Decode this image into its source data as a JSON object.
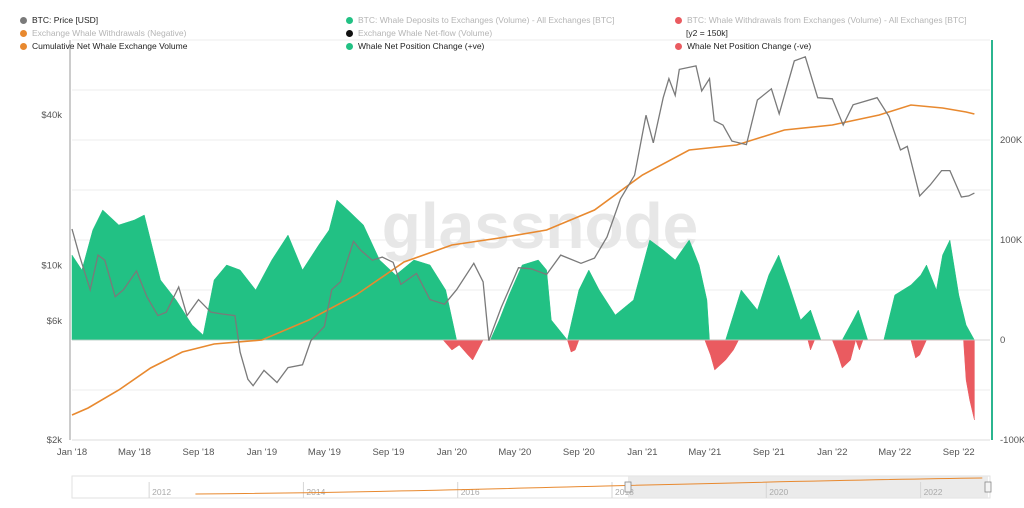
{
  "colors": {
    "price": "#7a7a7a",
    "cumulative": "#e8892f",
    "positive": "#22c184",
    "negative": "#ea5b60",
    "deposits": "#22c184",
    "withdrawals": "#ea5b60",
    "netflow": "#111111",
    "negWithdrawals": "#e8892f",
    "axis_right": "#2bb58f",
    "grid": "#ededed"
  },
  "legend": {
    "items": [
      {
        "label": "BTC: Price [USD]",
        "color": "#7a7a7a",
        "dim": false
      },
      {
        "label": "BTC: Whale Deposits to Exchanges (Volume) - All Exchanges [BTC]",
        "color": "#22c184",
        "dim": true
      },
      {
        "label": "BTC: Whale Withdrawals from Exchanges (Volume) - All Exchanges [BTC]",
        "color": "#ea5b60",
        "dim": true
      },
      {
        "label": "Exchange Whale Withdrawals (Negative)",
        "color": "#e8892f",
        "dim": true
      },
      {
        "label": "Exchange Whale Net-flow (Volume)",
        "color": "#111111",
        "dim": true
      },
      {
        "label": "[y2 = 150k]",
        "color": "",
        "dim": false
      },
      {
        "label": "Cumulative Net Whale Exchange Volume",
        "color": "#e8892f",
        "dim": false
      },
      {
        "label": "Whale Net Position Change (+ve)",
        "color": "#22c184",
        "dim": false
      },
      {
        "label": "Whale Net Position Change (-ve)",
        "color": "#ea5b60",
        "dim": false
      }
    ]
  },
  "watermark": "glassnode",
  "chart_data": {
    "type": "area",
    "x_axis": {
      "ticks": [
        "Jan '18",
        "May '18",
        "Sep '18",
        "Jan '19",
        "May '19",
        "Sep '19",
        "Jan '20",
        "May '20",
        "Sep '20",
        "Jan '21",
        "May '21",
        "Sep '21",
        "Jan '22",
        "May '22",
        "Sep '22"
      ],
      "range": [
        "2018-01-01",
        "2022-10-31"
      ]
    },
    "y_left": {
      "scale": "log",
      "ticks": [
        "$2k",
        "$6k",
        "$10k",
        "$40k"
      ],
      "tick_values": [
        2000,
        6000,
        10000,
        40000
      ],
      "range": [
        2000,
        80000
      ]
    },
    "y_right": {
      "ticks": [
        "-100K",
        "0",
        "100K",
        "200K"
      ],
      "tick_values": [
        -100000,
        0,
        100000,
        200000
      ],
      "range": [
        -100000,
        300000
      ]
    },
    "series": [
      {
        "name": "BTC: Price [USD]",
        "axis": "left",
        "kind": "line",
        "x": [
          "2018-01-01",
          "2018-01-15",
          "2018-02-05",
          "2018-02-20",
          "2018-03-05",
          "2018-03-25",
          "2018-04-10",
          "2018-05-05",
          "2018-05-25",
          "2018-06-15",
          "2018-07-01",
          "2018-07-25",
          "2018-08-10",
          "2018-09-01",
          "2018-09-25",
          "2018-10-15",
          "2018-11-10",
          "2018-11-20",
          "2018-12-05",
          "2018-12-15",
          "2019-01-05",
          "2019-01-30",
          "2019-02-20",
          "2019-03-20",
          "2019-04-05",
          "2019-05-01",
          "2019-05-15",
          "2019-06-01",
          "2019-06-26",
          "2019-07-10",
          "2019-08-01",
          "2019-08-20",
          "2019-09-10",
          "2019-09-25",
          "2019-10-25",
          "2019-11-20",
          "2019-12-18",
          "2020-01-10",
          "2020-02-12",
          "2020-03-01",
          "2020-03-12",
          "2020-04-05",
          "2020-05-08",
          "2020-06-01",
          "2020-07-01",
          "2020-07-28",
          "2020-09-05",
          "2020-10-01",
          "2020-10-25",
          "2020-11-20",
          "2020-12-17",
          "2021-01-08",
          "2021-01-22",
          "2021-02-10",
          "2021-02-21",
          "2021-03-05",
          "2021-03-13",
          "2021-04-14",
          "2021-04-25",
          "2021-05-10",
          "2021-05-19",
          "2021-06-05",
          "2021-06-22",
          "2021-07-20",
          "2021-08-10",
          "2021-09-06",
          "2021-09-21",
          "2021-10-20",
          "2021-11-10",
          "2021-12-04",
          "2022-01-01",
          "2022-01-22",
          "2022-02-10",
          "2022-03-28",
          "2022-04-20",
          "2022-05-12",
          "2022-05-25",
          "2022-06-18",
          "2022-07-08",
          "2022-07-30",
          "2022-08-15",
          "2022-09-06",
          "2022-09-20",
          "2022-10-01"
        ],
        "y": [
          14000,
          11000,
          8000,
          11000,
          10500,
          7500,
          8000,
          9500,
          7500,
          6300,
          6500,
          8200,
          6300,
          7300,
          6500,
          6400,
          6300,
          4500,
          3500,
          3300,
          3800,
          3400,
          3900,
          4000,
          5000,
          5700,
          8000,
          8600,
          12500,
          11500,
          10500,
          10800,
          10300,
          8400,
          9300,
          7300,
          7000,
          8000,
          10200,
          8600,
          5000,
          6800,
          9800,
          9700,
          9200,
          11000,
          10200,
          10700,
          13000,
          18500,
          23000,
          40000,
          31000,
          47000,
          56000,
          48000,
          61000,
          63000,
          50000,
          56000,
          38000,
          36500,
          31500,
          30500,
          46000,
          51000,
          40500,
          66000,
          68500,
          47000,
          46500,
          36500,
          44000,
          47000,
          39500,
          29000,
          30000,
          19000,
          21000,
          24000,
          24000,
          18800,
          19000,
          19500
        ]
      },
      {
        "name": "Cumulative Net Whale Exchange Volume",
        "axis": "right",
        "kind": "line",
        "x": [
          "2018-01-01",
          "2018-02-01",
          "2018-04-01",
          "2018-06-01",
          "2018-08-01",
          "2018-10-01",
          "2019-01-01",
          "2019-04-01",
          "2019-07-01",
          "2019-10-01",
          "2020-01-01",
          "2020-04-01",
          "2020-07-01",
          "2020-10-01",
          "2021-01-01",
          "2021-04-01",
          "2021-07-01",
          "2021-10-01",
          "2022-01-01",
          "2022-04-01",
          "2022-06-01",
          "2022-08-01",
          "2022-09-15",
          "2022-10-01"
        ],
        "y": [
          -75000,
          -68000,
          -50000,
          -28000,
          -12000,
          -4000,
          0,
          20000,
          45000,
          78000,
          95000,
          102000,
          110000,
          130000,
          165000,
          190000,
          195000,
          210000,
          215000,
          225000,
          235000,
          232000,
          228000,
          226000
        ]
      },
      {
        "name": "Whale Net Position Change (+ve)",
        "axis": "right",
        "kind": "area",
        "x": [
          "2018-01-01",
          "2018-01-20",
          "2018-02-10",
          "2018-03-01",
          "2018-04-01",
          "2018-05-01",
          "2018-05-20",
          "2018-06-20",
          "2018-07-20",
          "2018-08-20",
          "2018-09-10",
          "2018-10-01",
          "2018-10-25",
          "2018-11-20",
          "2018-12-20",
          "2019-01-20",
          "2019-02-20",
          "2019-03-20",
          "2019-04-20",
          "2019-05-10",
          "2019-05-25",
          "2019-06-15",
          "2019-07-15",
          "2019-08-15",
          "2019-09-15",
          "2019-10-20",
          "2019-11-20",
          "2019-12-20",
          "2020-01-10",
          "2020-01-20",
          "2020-02-20",
          "2020-03-15",
          "2020-04-01",
          "2020-04-20",
          "2020-05-15",
          "2020-06-15",
          "2020-07-01",
          "2020-07-10",
          "2020-08-10",
          "2020-09-01",
          "2020-09-20",
          "2020-10-10",
          "2020-11-10",
          "2020-12-15",
          "2021-01-15",
          "2021-02-10",
          "2021-03-05",
          "2021-04-01",
          "2021-04-20",
          "2021-05-05",
          "2021-05-10",
          "2021-06-10",
          "2021-07-10",
          "2021-08-10",
          "2021-09-01",
          "2021-09-20",
          "2021-10-10",
          "2021-11-01",
          "2021-11-20",
          "2021-12-10",
          "2022-01-01",
          "2022-01-20",
          "2022-02-10",
          "2022-02-20",
          "2022-03-10",
          "2022-04-10",
          "2022-05-01",
          "2022-06-01",
          "2022-06-20",
          "2022-07-01",
          "2022-07-20",
          "2022-08-01",
          "2022-08-15",
          "2022-09-01",
          "2022-09-15",
          "2022-10-01"
        ],
        "y": [
          85000,
          70000,
          110000,
          130000,
          115000,
          120000,
          125000,
          60000,
          40000,
          15000,
          5000,
          60000,
          75000,
          70000,
          50000,
          80000,
          105000,
          70000,
          95000,
          110000,
          140000,
          130000,
          115000,
          80000,
          65000,
          80000,
          75000,
          50000,
          0,
          0,
          0,
          0,
          20000,
          45000,
          75000,
          80000,
          70000,
          20000,
          0,
          50000,
          70000,
          50000,
          25000,
          40000,
          100000,
          90000,
          80000,
          100000,
          75000,
          40000,
          0,
          0,
          50000,
          30000,
          65000,
          85000,
          55000,
          20000,
          30000,
          0,
          0,
          0,
          20000,
          30000,
          0,
          0,
          45000,
          55000,
          65000,
          75000,
          50000,
          85000,
          100000,
          45000,
          15000,
          0
        ]
      },
      {
        "name": "Whale Net Position Change (-ve)",
        "axis": "right",
        "kind": "area",
        "x": [
          "2019-12-15",
          "2020-01-01",
          "2020-01-15",
          "2020-02-01",
          "2020-02-10",
          "2020-02-20",
          "2020-03-01",
          "2020-08-10",
          "2020-08-17",
          "2020-08-25",
          "2020-09-01",
          "2021-05-01",
          "2021-05-12",
          "2021-05-20",
          "2021-06-10",
          "2021-06-25",
          "2021-07-05",
          "2021-11-15",
          "2021-11-20",
          "2021-11-28",
          "2022-01-01",
          "2022-01-12",
          "2022-01-20",
          "2022-02-05",
          "2022-02-15",
          "2022-02-22",
          "2022-03-01",
          "2022-06-01",
          "2022-06-10",
          "2022-06-18",
          "2022-07-01",
          "2022-09-10",
          "2022-09-15",
          "2022-09-22",
          "2022-10-01"
        ],
        "y": [
          0,
          -10000,
          -5000,
          -15000,
          -20000,
          -10000,
          0,
          0,
          -12000,
          -10000,
          0,
          0,
          -15000,
          -30000,
          -20000,
          -10000,
          0,
          0,
          -10000,
          0,
          0,
          -15000,
          -28000,
          -20000,
          0,
          -10000,
          0,
          0,
          -18000,
          -15000,
          0,
          0,
          -40000,
          -60000,
          -80000
        ]
      }
    ],
    "navigator": {
      "years": [
        "2012",
        "2014",
        "2016",
        "2018",
        "2020",
        "2022"
      ]
    }
  }
}
